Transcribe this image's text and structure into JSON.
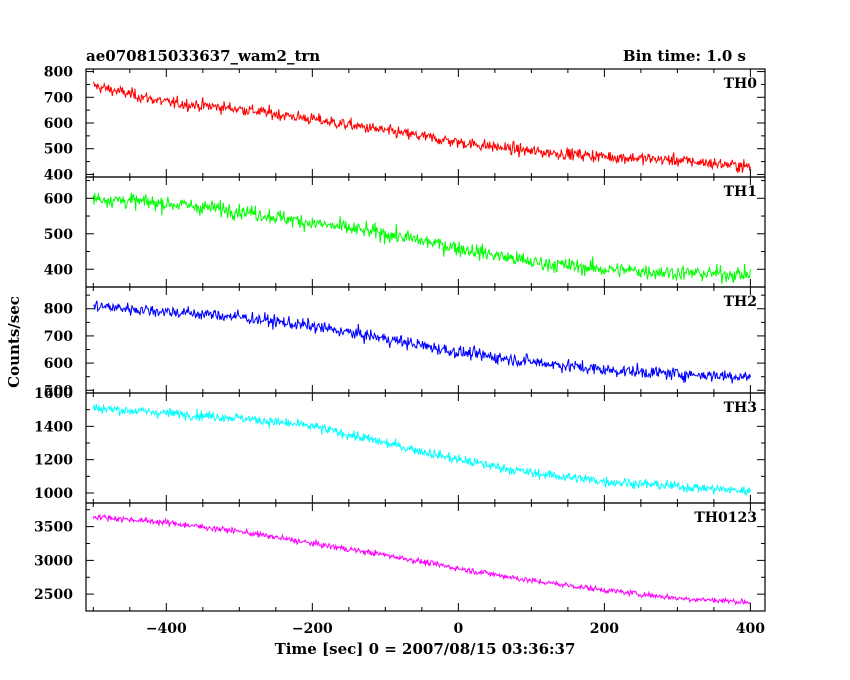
{
  "header": {
    "title": "ae070815033637_wam2_trn",
    "bin_time": "Bin time: 1.0 s"
  },
  "axes": {
    "xlabel": "Time [sec] 0 = 2007/08/15 03:36:37",
    "ylabel": "Counts/sec",
    "xlim": [
      -510,
      420
    ],
    "xticks": [
      -400,
      -200,
      0,
      200,
      400
    ],
    "xtick_labels": [
      "−400",
      "−200",
      "0",
      "200",
      "400"
    ]
  },
  "chart_data": {
    "type": "line",
    "xlabel": "Time [sec] 0 = 2007/08/15 03:36:37",
    "ylabel": "Counts/sec",
    "x_range": [
      -500,
      400
    ],
    "bin_time_s": 1.0,
    "series": [
      {
        "name": "TH0",
        "color": "#ff0000",
        "ylim": [
          390,
          810
        ],
        "yticks": [
          400,
          500,
          600,
          700,
          800
        ],
        "x": [
          -500,
          -400,
          -300,
          -200,
          -100,
          0,
          100,
          200,
          300,
          400
        ],
        "values": [
          745,
          680,
          655,
          615,
          570,
          525,
          490,
          470,
          455,
          430
        ],
        "noise": 30
      },
      {
        "name": "TH1",
        "color": "#00ff00",
        "ylim": [
          350,
          660
        ],
        "yticks": [
          400,
          500,
          600
        ],
        "x": [
          -500,
          -400,
          -300,
          -200,
          -100,
          0,
          100,
          200,
          300,
          400
        ],
        "values": [
          600,
          585,
          565,
          530,
          500,
          460,
          420,
          400,
          390,
          385
        ],
        "noise": 28
      },
      {
        "name": "TH2",
        "color": "#0000ff",
        "ylim": [
          490,
          880
        ],
        "yticks": [
          500,
          600,
          700,
          800
        ],
        "x": [
          -500,
          -400,
          -300,
          -200,
          -100,
          0,
          100,
          200,
          300,
          400
        ],
        "values": [
          810,
          790,
          770,
          735,
          690,
          640,
          605,
          575,
          560,
          550
        ],
        "noise": 30
      },
      {
        "name": "TH3",
        "color": "#00ffff",
        "ylim": [
          940,
          1600
        ],
        "yticks": [
          1000,
          1200,
          1400,
          1600
        ],
        "x": [
          -500,
          -400,
          -300,
          -200,
          -100,
          0,
          100,
          200,
          300,
          400
        ],
        "values": [
          1510,
          1480,
          1450,
          1400,
          1300,
          1200,
          1120,
          1070,
          1040,
          1010
        ],
        "noise": 38
      },
      {
        "name": "TH0123",
        "color": "#ff00ff",
        "ylim": [
          2250,
          3850
        ],
        "yticks": [
          2500,
          3000,
          3500
        ],
        "x": [
          -500,
          -400,
          -300,
          -200,
          -100,
          0,
          100,
          200,
          300,
          400
        ],
        "values": [
          3650,
          3560,
          3430,
          3250,
          3080,
          2880,
          2700,
          2560,
          2440,
          2380
        ],
        "noise": 55
      }
    ]
  }
}
